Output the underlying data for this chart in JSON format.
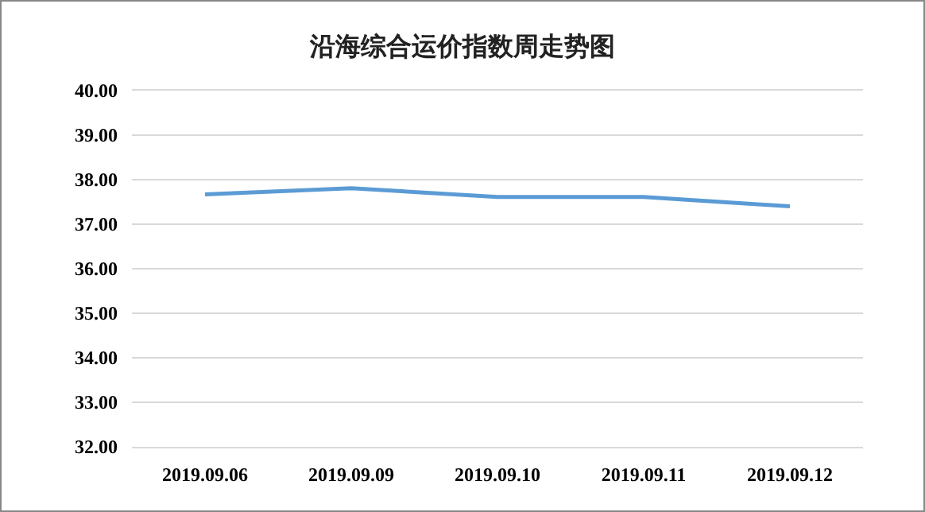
{
  "chart_data": {
    "type": "line",
    "title": "沿海综合运价指数周走势图",
    "categories": [
      "2019.09.06",
      "2019.09.09",
      "2019.09.10",
      "2019.09.11",
      "2019.09.12"
    ],
    "series": [
      {
        "color": "#5b9bd5",
        "values": [
          37.67,
          37.81,
          37.61,
          37.61,
          37.4
        ]
      }
    ],
    "ylim": [
      32,
      40
    ],
    "yticks": [
      {
        "value": 32,
        "label": "32.00"
      },
      {
        "value": 33,
        "label": "33.00"
      },
      {
        "value": 34,
        "label": "34.00"
      },
      {
        "value": 35,
        "label": "35.00"
      },
      {
        "value": 36,
        "label": "36.00"
      },
      {
        "value": 37,
        "label": "37.00"
      },
      {
        "value": 38,
        "label": "38.00"
      },
      {
        "value": 39,
        "label": "39.00"
      },
      {
        "value": 40,
        "label": "40.00"
      }
    ],
    "grid": "y",
    "marker": "none",
    "line_style": "solid"
  }
}
